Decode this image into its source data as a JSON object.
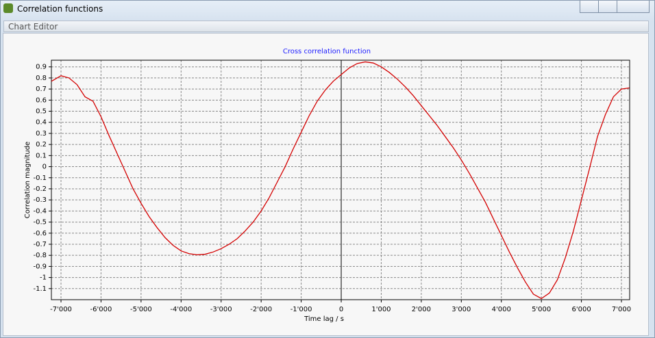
{
  "window": {
    "title": "Correlation functions",
    "toolbar": "Chart Editor"
  },
  "chart_data": {
    "type": "line",
    "title": "Cross correlation function",
    "x_label": "Time lag / s",
    "y_label": "Correlation magnitude",
    "x": [
      -7240,
      -7000,
      -6800,
      -6600,
      -6400,
      -6200,
      -6000,
      -5800,
      -5600,
      -5400,
      -5200,
      -5000,
      -4800,
      -4600,
      -4400,
      -4200,
      -4000,
      -3800,
      -3600,
      -3400,
      -3200,
      -3000,
      -2800,
      -2600,
      -2400,
      -2200,
      -2000,
      -1800,
      -1600,
      -1400,
      -1200,
      -1000,
      -800,
      -600,
      -400,
      -200,
      0,
      200,
      400,
      600,
      800,
      1000,
      1200,
      1400,
      1600,
      1800,
      2000,
      2200,
      2400,
      2600,
      2800,
      3000,
      3200,
      3400,
      3600,
      3800,
      4000,
      4200,
      4400,
      4600,
      4800,
      5000,
      5200,
      5400,
      5600,
      5800,
      6000,
      6200,
      6400,
      6600,
      6800,
      7000,
      7200
    ],
    "series": [
      {
        "color": "#d40000",
        "values": [
          0.77,
          0.82,
          0.8,
          0.74,
          0.63,
          0.59,
          0.45,
          0.28,
          0.12,
          -0.04,
          -0.2,
          -0.33,
          -0.45,
          -0.55,
          -0.64,
          -0.71,
          -0.76,
          -0.785,
          -0.795,
          -0.79,
          -0.77,
          -0.74,
          -0.7,
          -0.65,
          -0.58,
          -0.5,
          -0.4,
          -0.28,
          -0.14,
          0.0,
          0.16,
          0.31,
          0.46,
          0.59,
          0.69,
          0.77,
          0.83,
          0.89,
          0.93,
          0.945,
          0.935,
          0.9,
          0.85,
          0.79,
          0.72,
          0.64,
          0.55,
          0.46,
          0.37,
          0.27,
          0.17,
          0.06,
          -0.06,
          -0.19,
          -0.32,
          -0.47,
          -0.62,
          -0.77,
          -0.91,
          -1.04,
          -1.15,
          -1.19,
          -1.14,
          -1.02,
          -0.82,
          -0.58,
          -0.3,
          -0.02,
          0.27,
          0.47,
          0.63,
          0.7,
          0.71
        ]
      }
    ],
    "xlim": [
      -7240,
      7205
    ],
    "ylim": [
      -1.2,
      0.96
    ],
    "xticks": [
      {
        "value": -7000,
        "label": "-7'000"
      },
      {
        "value": -6000,
        "label": "-6'000"
      },
      {
        "value": -5000,
        "label": "-5'000"
      },
      {
        "value": -4000,
        "label": "-4'000"
      },
      {
        "value": -3000,
        "label": "-3'000"
      },
      {
        "value": -2000,
        "label": "-2'000"
      },
      {
        "value": -1000,
        "label": "-1'000"
      },
      0,
      {
        "value": 1000,
        "label": "1'000"
      },
      {
        "value": 2000,
        "label": "2'000"
      },
      {
        "value": 3000,
        "label": "3'000"
      },
      {
        "value": 4000,
        "label": "4'000"
      },
      {
        "value": 5000,
        "label": "5'000"
      },
      {
        "value": 6000,
        "label": "6'000"
      },
      {
        "value": 7000,
        "label": "7'000"
      }
    ],
    "yticks": [
      0.9,
      0.8,
      0.7,
      0.6,
      0.5,
      0.4,
      0.3,
      0.2,
      0.1,
      0,
      -0.1,
      -0.2,
      -0.3,
      -0.4,
      -0.5,
      -0.6,
      -0.7,
      -0.8,
      -0.9,
      -1,
      -1.1
    ],
    "grid": true
  }
}
